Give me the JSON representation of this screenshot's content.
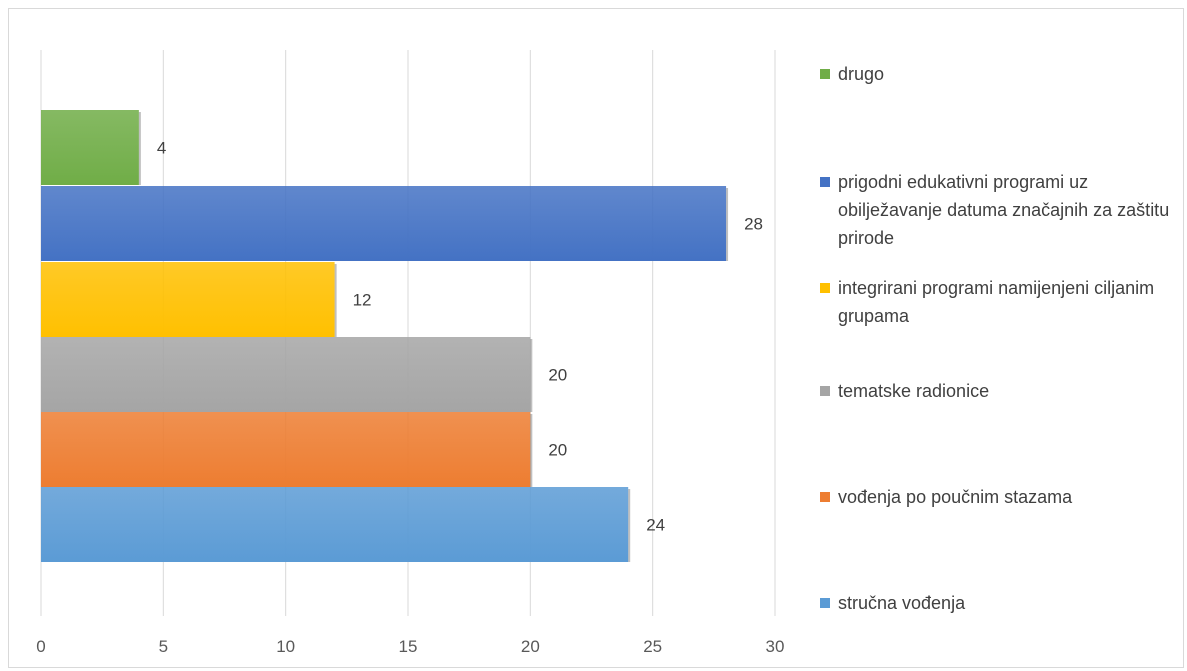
{
  "chart_data": {
    "type": "bar",
    "orientation": "horizontal",
    "categories": [
      "drugo",
      "prigodni edukativni programi uz obilježavanje datuma značajnih za zaštitu prirode",
      "integrirani programi namijenjeni ciljanim grupama",
      "tematske radionice",
      "vođenja po poučnim stazama",
      "stručna vođenja"
    ],
    "values": [
      4,
      28,
      12,
      20,
      20,
      24
    ],
    "colors": [
      "#70ad47",
      "#4472c4",
      "#ffc000",
      "#a5a5a5",
      "#ed7d31",
      "#5b9bd5"
    ],
    "data_labels": [
      "4",
      "28",
      "12",
      "20",
      "20",
      "24"
    ],
    "xlim": [
      0,
      30
    ],
    "x_ticks": [
      "0",
      "5",
      "10",
      "15",
      "20",
      "25",
      "30"
    ],
    "grid": true,
    "legend_position": "right",
    "title": "",
    "xlabel": "",
    "ylabel": ""
  },
  "legend": [
    {
      "label": "drugo",
      "color": "#70ad47"
    },
    {
      "label": "prigodni edukativni programi uz obilježavanje datuma značajnih za zaštitu prirode",
      "color": "#4472c4"
    },
    {
      "label": "integrirani programi namijenjeni ciljanim grupama",
      "color": "#ffc000"
    },
    {
      "label": "tematske radionice",
      "color": "#a5a5a5"
    },
    {
      "label": "vođenja po poučnim stazama",
      "color": "#ed7d31"
    },
    {
      "label": "stručna vođenja",
      "color": "#5b9bd5"
    }
  ]
}
